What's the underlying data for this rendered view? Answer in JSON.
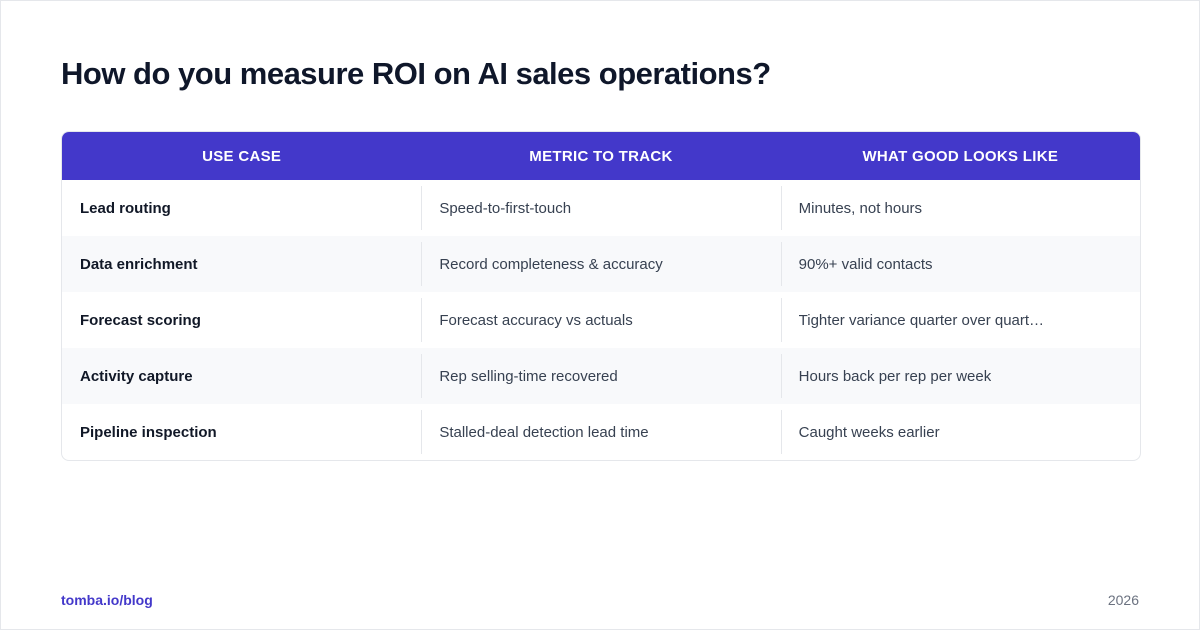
{
  "title": "How do you measure ROI on AI sales operations?",
  "table": {
    "headers": [
      "USE CASE",
      "METRIC TO TRACK",
      "WHAT GOOD LOOKS LIKE"
    ],
    "rows": [
      [
        "Lead routing",
        "Speed-to-first-touch",
        "Minutes, not hours"
      ],
      [
        "Data enrichment",
        "Record completeness & accuracy",
        "90%+ valid contacts"
      ],
      [
        "Forecast scoring",
        "Forecast accuracy vs actuals",
        "Tighter variance quarter over quart…"
      ],
      [
        "Activity capture",
        "Rep selling-time recovered",
        "Hours back per rep per week"
      ],
      [
        "Pipeline inspection",
        "Stalled-deal detection lead time",
        "Caught weeks earlier"
      ]
    ]
  },
  "footer": {
    "link": "tomba.io/blog",
    "year": "2026"
  },
  "colors": {
    "accent": "#4338ca",
    "title": "#0f172a",
    "row_alt": "#f8f9fb",
    "border": "#e5e7eb"
  }
}
